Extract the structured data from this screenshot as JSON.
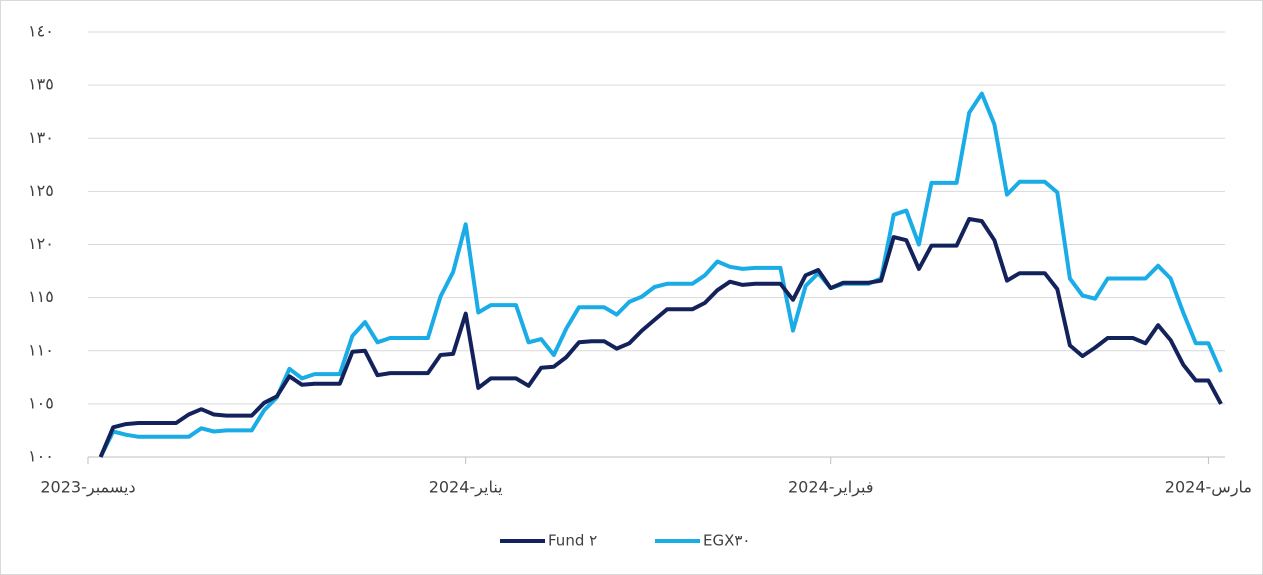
{
  "chart_data": {
    "type": "line",
    "categories": [
      "ديسمبر-2023",
      null,
      null,
      null,
      null,
      null,
      null,
      null,
      null,
      null,
      null,
      null,
      null,
      null,
      null,
      null,
      null,
      null,
      null,
      null,
      null,
      null,
      null,
      null,
      null,
      null,
      null,
      null,
      null,
      null,
      "يناير-2024",
      null,
      null,
      null,
      null,
      null,
      null,
      null,
      null,
      null,
      null,
      null,
      null,
      null,
      null,
      null,
      null,
      null,
      null,
      null,
      null,
      null,
      null,
      null,
      null,
      null,
      null,
      null,
      null,
      "فبراير-2024",
      null,
      null,
      null,
      null,
      null,
      null,
      null,
      null,
      null,
      null,
      null,
      null,
      null,
      null,
      null,
      null,
      null,
      null,
      null,
      null,
      null,
      null,
      null,
      null,
      null,
      null,
      null,
      null,
      null,
      "مارس-2024",
      null
    ],
    "series": [
      {
        "name": "Fund ٢",
        "color": "#14225c",
        "values": [
          null,
          100,
          102.8,
          103.1,
          103.2,
          103.2,
          103.2,
          103.2,
          104.0,
          104.5,
          104.0,
          103.9,
          103.9,
          103.9,
          105.1,
          105.7,
          107.6,
          106.8,
          106.9,
          106.9,
          106.9,
          109.9,
          110.0,
          107.7,
          107.9,
          107.9,
          107.9,
          107.9,
          109.6,
          109.7,
          113.5,
          106.5,
          107.4,
          107.4,
          107.4,
          106.7,
          108.4,
          108.5,
          109.4,
          110.8,
          110.9,
          110.9,
          110.2,
          110.7,
          111.9,
          112.9,
          113.9,
          113.9,
          113.9,
          114.5,
          115.7,
          116.5,
          116.2,
          116.3,
          116.3,
          116.3,
          114.8,
          117.1,
          117.6,
          115.9,
          116.4,
          116.4,
          116.4,
          116.6,
          120.7,
          120.4,
          117.7,
          119.9,
          119.9,
          119.9,
          122.4,
          122.2,
          120.4,
          116.6,
          117.3,
          117.3,
          117.3,
          115.8,
          110.5,
          109.5,
          110.3,
          111.2,
          111.2,
          111.2,
          110.7,
          112.4,
          111.0,
          108.7,
          107.2,
          107.2,
          105.0
        ]
      },
      {
        "name": "EGX٣٠",
        "color": "#1aace6",
        "values": [
          null,
          100,
          102.4,
          102.1,
          101.9,
          101.9,
          101.9,
          101.9,
          101.9,
          102.7,
          102.4,
          102.5,
          102.5,
          102.5,
          104.4,
          105.6,
          108.3,
          107.4,
          107.8,
          107.8,
          107.8,
          111.4,
          112.7,
          110.8,
          111.2,
          111.2,
          111.2,
          111.2,
          115.1,
          117.4,
          121.9,
          113.6,
          114.3,
          114.3,
          114.3,
          110.8,
          111.1,
          109.6,
          112.1,
          114.1,
          114.1,
          114.1,
          113.4,
          114.6,
          115.1,
          116.0,
          116.3,
          116.3,
          116.3,
          117.1,
          118.4,
          117.9,
          117.7,
          117.8,
          117.8,
          117.8,
          111.9,
          116.1,
          117.3,
          115.9,
          116.3,
          116.3,
          116.3,
          116.8,
          122.8,
          123.2,
          120.0,
          125.8,
          125.8,
          125.8,
          132.4,
          134.2,
          131.3,
          124.7,
          125.9,
          125.9,
          125.9,
          124.9,
          116.8,
          115.2,
          114.9,
          116.8,
          116.8,
          116.8,
          116.8,
          118.0,
          116.8,
          113.6,
          110.7,
          110.7,
          108.0
        ]
      }
    ],
    "ylim": [
      100,
      140
    ],
    "yticks": [
      {
        "value": 100,
        "label": "١٠٠"
      },
      {
        "value": 105,
        "label": "١٠٥"
      },
      {
        "value": 110,
        "label": "١١٠"
      },
      {
        "value": 115,
        "label": "١١٥"
      },
      {
        "value": 120,
        "label": "١٢٠"
      },
      {
        "value": 125,
        "label": "١٢٥"
      },
      {
        "value": 130,
        "label": "١٣٠"
      },
      {
        "value": 135,
        "label": "١٣٥"
      },
      {
        "value": 140,
        "label": "١٤٠"
      }
    ],
    "grid": true,
    "legend": "bottom"
  }
}
